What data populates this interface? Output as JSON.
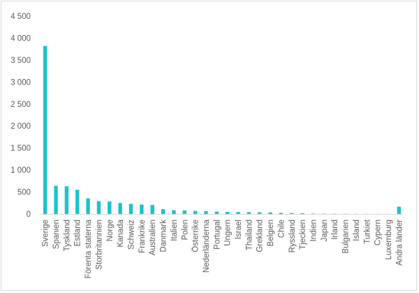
{
  "chart_data": {
    "type": "bar",
    "title": "",
    "xlabel": "",
    "ylabel": "",
    "ylim": [
      0,
      4500
    ],
    "yticks": [
      0,
      500,
      1000,
      1500,
      2000,
      2500,
      3000,
      3500,
      4000,
      4500
    ],
    "ytick_labels": [
      "0",
      "500",
      "1 000",
      "1 500",
      "2 000",
      "2 500",
      "3 000",
      "3 500",
      "4 000",
      "4 500"
    ],
    "grid": false,
    "legend": "none",
    "bar_color": "#19c3cf",
    "categories": [
      "Sverige",
      "Spanien",
      "Tyskland",
      "Estland",
      "Förenta staterna",
      "Storbritannien",
      "Norge",
      "Kanada",
      "Schweiz",
      "Frankrike",
      "Australien",
      "Danmark",
      "Italien",
      "Polen",
      "Österrike",
      "Nederländerna",
      "Portugal",
      "Ungern",
      "Israel",
      "Thailand",
      "Grekland",
      "Belgien",
      "Chile",
      "Ryssland",
      "Tjeckien",
      "Indien",
      "Japan",
      "Irland",
      "Bulgarien",
      "Island",
      "Turkiet",
      "Cypern",
      "Luxemburg",
      "Andra länder"
    ],
    "values": [
      3820,
      640,
      630,
      550,
      355,
      290,
      285,
      250,
      230,
      215,
      205,
      110,
      85,
      80,
      70,
      65,
      55,
      48,
      45,
      42,
      40,
      35,
      25,
      22,
      18,
      8,
      6,
      5,
      4,
      3,
      3,
      2,
      2,
      165
    ]
  }
}
